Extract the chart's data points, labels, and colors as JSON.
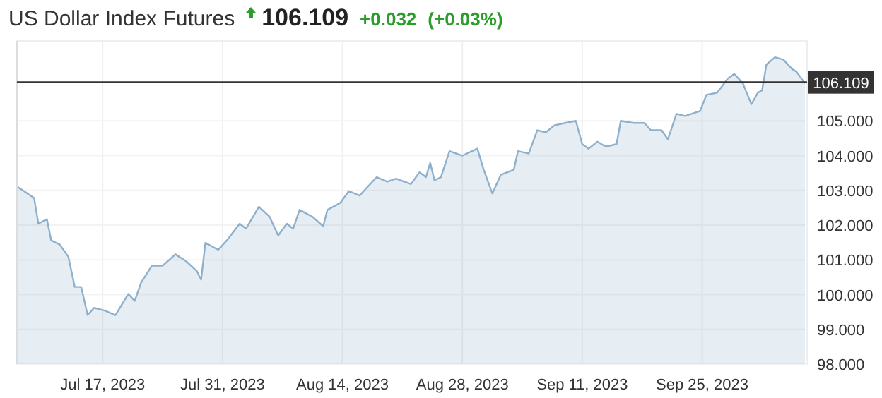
{
  "chart_data": {
    "type": "area",
    "title": "US Dollar Index Futures",
    "annotations": [
      "106.109",
      "+0.032",
      "(+0.03%)"
    ],
    "x": [
      "2023-07-07",
      "2023-07-09",
      "2023-07-09T12:00",
      "2023-07-10T12:00",
      "2023-07-11",
      "2023-07-12",
      "2023-07-13",
      "2023-07-13T18:00",
      "2023-07-14T12:00",
      "2023-07-15T06:00",
      "2023-07-16",
      "2023-07-17T06:00",
      "2023-07-18T12:00",
      "2023-07-20",
      "2023-07-20T18:00",
      "2023-07-21T12:00",
      "2023-07-22T18:00",
      "2023-07-24",
      "2023-07-25T12:00",
      "2023-07-26T18:00",
      "2023-07-28",
      "2023-07-28T12:00",
      "2023-07-29",
      "2023-07-30T12:00",
      "2023-07-31T12:00",
      "2023-08-02",
      "2023-08-02T18:00",
      "2023-08-04T06:00",
      "2023-08-05T12:00",
      "2023-08-06T12:00",
      "2023-08-07T12:00",
      "2023-08-08T06:00",
      "2023-08-09",
      "2023-08-10T12:00",
      "2023-08-11T18:00",
      "2023-08-12T06:00",
      "2023-08-13T18:00",
      "2023-08-14T18:00",
      "2023-08-16",
      "2023-08-16T18:00",
      "2023-08-18",
      "2023-08-19T06:00",
      "2023-08-20T06:00",
      "2023-08-22",
      "2023-08-23",
      "2023-08-23T18:00",
      "2023-08-24T06:00",
      "2023-08-24T18:00",
      "2023-08-25T12:00",
      "2023-08-26T12:00",
      "2023-08-28",
      "2023-08-29T18:00",
      "2023-08-30T12:00",
      "2023-08-31T12:00",
      "2023-09-01T12:00",
      "2023-09-03",
      "2023-09-03T12:00",
      "2023-09-04T18:00",
      "2023-09-05T18:00",
      "2023-09-06T18:00",
      "2023-09-07T18:00",
      "2023-09-09",
      "2023-09-10T06:00",
      "2023-09-11",
      "2023-09-11T18:00",
      "2023-09-12T18:00",
      "2023-09-13T18:00",
      "2023-09-15",
      "2023-09-15T12:00",
      "2023-09-17",
      "2023-09-18T06:00",
      "2023-09-19",
      "2023-09-20T06:00",
      "2023-09-21",
      "2023-09-22",
      "2023-09-23",
      "2023-09-24T18:00",
      "2023-09-25T12:00",
      "2023-09-26T18:00",
      "2023-09-28",
      "2023-09-28T18:00",
      "2023-09-29T18:00",
      "2023-09-30T18:00",
      "2023-10-01T12:00",
      "2023-10-02",
      "2023-10-02T12:00",
      "2023-10-03T12:00",
      "2023-10-04T12:00",
      "2023-10-05T12:00",
      "2023-10-06",
      "2023-10-07"
    ],
    "series": [
      {
        "color": "#8fb0cc",
        "values": [
          103.11,
          102.78,
          102.04,
          102.17,
          101.56,
          101.44,
          101.09,
          100.22,
          100.22,
          99.41,
          99.62,
          99.54,
          99.41,
          100.02,
          99.82,
          100.35,
          100.83,
          100.83,
          101.16,
          100.96,
          100.68,
          100.43,
          101.49,
          101.29,
          101.56,
          102.04,
          101.9,
          102.53,
          102.24,
          101.7,
          102.04,
          101.9,
          102.44,
          102.24,
          101.97,
          102.44,
          102.64,
          102.98,
          102.85,
          103.05,
          103.38,
          103.25,
          103.34,
          103.18,
          103.52,
          103.38,
          103.79,
          103.29,
          103.38,
          104.13,
          104.0,
          104.2,
          103.59,
          102.91,
          103.45,
          103.59,
          104.13,
          104.06,
          104.73,
          104.67,
          104.87,
          104.94,
          105.0,
          104.33,
          104.2,
          104.4,
          104.26,
          104.33,
          105.0,
          104.94,
          104.94,
          104.73,
          104.73,
          104.47,
          105.2,
          105.14,
          105.28,
          105.75,
          105.81,
          106.22,
          106.35,
          106.08,
          105.48,
          105.81,
          105.88,
          106.62,
          106.83,
          106.76,
          106.49,
          106.42,
          106.08
        ]
      }
    ],
    "xlim": [
      "2023-07-07",
      "2023-10-07T06:00"
    ],
    "xticks": [
      {
        "value": "2023-07-17",
        "label": "Jul 17, 2023"
      },
      {
        "value": "2023-07-31",
        "label": "Jul 31, 2023"
      },
      {
        "value": "2023-08-14",
        "label": "Aug 14, 2023"
      },
      {
        "value": "2023-08-28",
        "label": "Aug 28, 2023"
      },
      {
        "value": "2023-09-11",
        "label": "Sep 11, 2023"
      },
      {
        "value": "2023-09-25",
        "label": "Sep 25, 2023"
      }
    ],
    "ylim": [
      98,
      107.3
    ],
    "yticks": [
      {
        "value": 98,
        "label": "98.000"
      },
      {
        "value": 99,
        "label": "99.000"
      },
      {
        "value": 100,
        "label": "100.000"
      },
      {
        "value": 101,
        "label": "101.000"
      },
      {
        "value": 102,
        "label": "102.000"
      },
      {
        "value": 103,
        "label": "103.000"
      },
      {
        "value": 104,
        "label": "104.000"
      },
      {
        "value": 105,
        "label": "105.000"
      }
    ],
    "ref_lines": [
      {
        "axis": "y",
        "value": 106.109,
        "label": "106.109",
        "color": "#333333"
      }
    ],
    "grid": true
  }
}
